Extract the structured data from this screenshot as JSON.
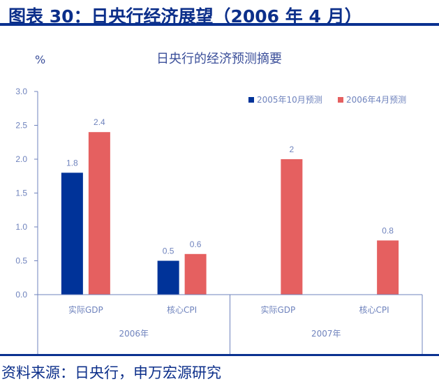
{
  "header": {
    "title": "图表 30：日央行经济展望（2006 年 4 月）"
  },
  "footer": {
    "source": "资料来源：日央行，申万宏源研究"
  },
  "chart_data": {
    "type": "bar",
    "title": "日央行的经济预测摘要",
    "ylabel": "%",
    "ylim": [
      0,
      3.0
    ],
    "yticks": [
      "0.0",
      "0.5",
      "1.0",
      "1.5",
      "2.0",
      "2.5",
      "3.0"
    ],
    "categories": [
      "实际GDP",
      "核心CPI",
      "实际GDP",
      "核心CPI"
    ],
    "groups": [
      {
        "label": "2006年",
        "span": 2
      },
      {
        "label": "2007年",
        "span": 2
      }
    ],
    "series": [
      {
        "name": "2005年10月预测",
        "color": "#003399",
        "values": [
          1.8,
          0.5,
          null,
          null
        ],
        "labels": [
          "1.8",
          "0.5",
          "",
          ""
        ]
      },
      {
        "name": "2006年4月预测",
        "color": "#e56060",
        "values": [
          2.4,
          0.6,
          2,
          0.8
        ],
        "labels": [
          "2.4",
          "0.6",
          "2",
          "0.8"
        ]
      }
    ],
    "legend": "top-right",
    "grid": false
  }
}
